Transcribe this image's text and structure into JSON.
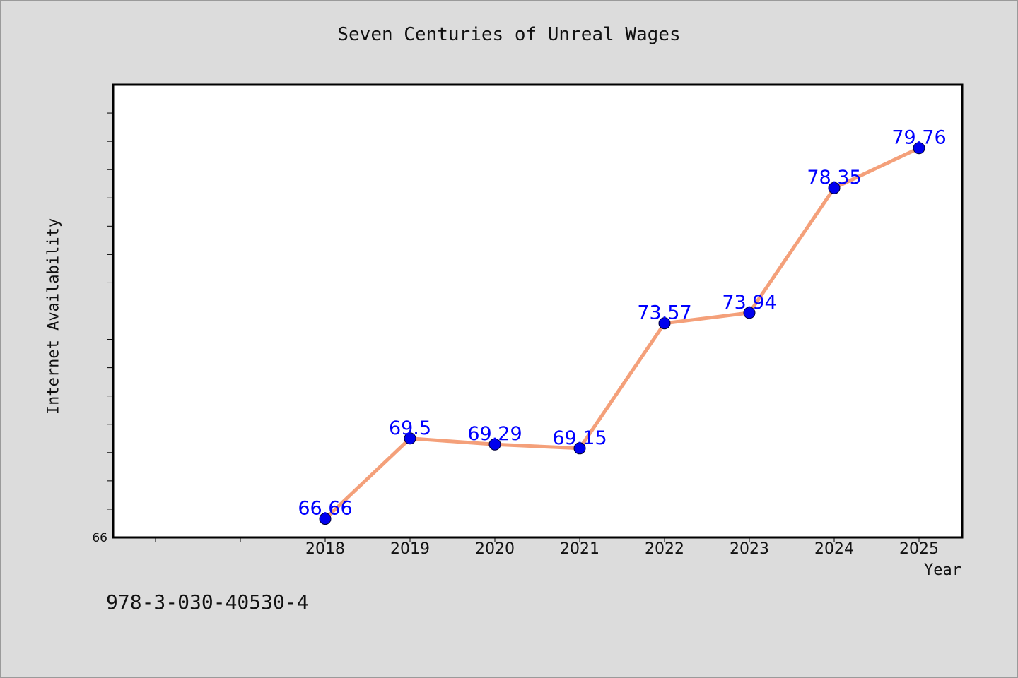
{
  "title": "Seven Centuries of Unreal Wages",
  "footer_text": "978-3-030-40530-4",
  "chart_data": {
    "type": "line",
    "title": "Seven Centuries of Unreal Wages",
    "xlabel": "Year",
    "ylabel": "Internet Availability",
    "categories": [
      "2018",
      "2019",
      "2020",
      "2021",
      "2022",
      "2023",
      "2024",
      "2025"
    ],
    "series": [
      {
        "values": [
          66.66,
          69.5,
          69.29,
          69.15,
          73.57,
          73.94,
          78.35,
          79.76
        ],
        "data_labels": [
          "66.66",
          "69.5",
          "69.29",
          "69.15",
          "73.57",
          "73.94",
          "78.35",
          "79.76"
        ]
      }
    ],
    "ylim": [
      66,
      82
    ],
    "y_tick_labels": [
      "66"
    ],
    "line_color": "#f4a07a",
    "marker_color": "#0000ee",
    "label_color": "#0000ff",
    "plot_background": "#ffffff",
    "page_background": "#dcdcdc",
    "grid": false,
    "legend": "none"
  }
}
